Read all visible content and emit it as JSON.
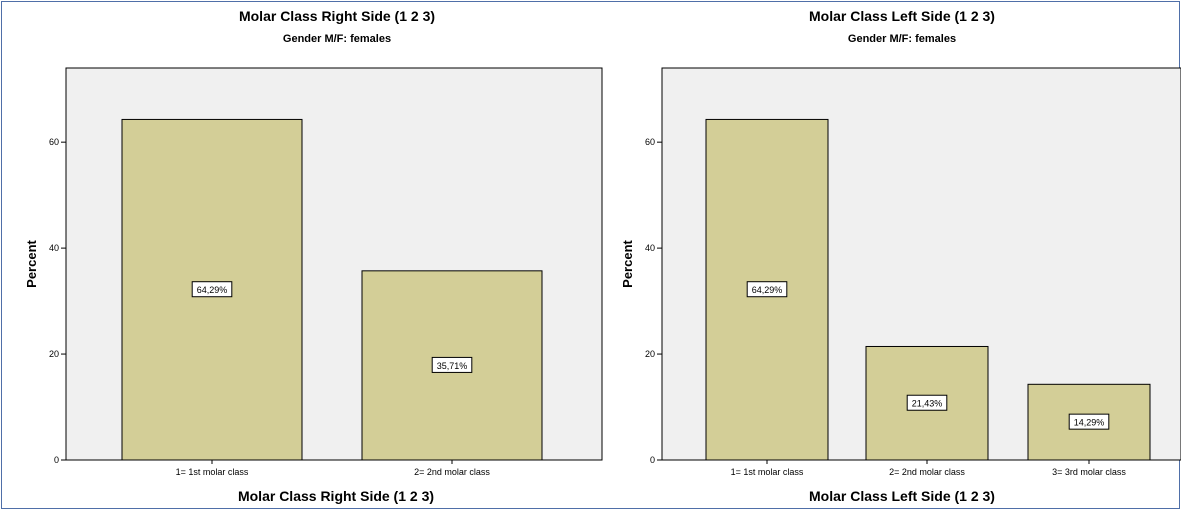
{
  "colors": {
    "plot_background": "#f0f0f0",
    "bar_fill": "#d3ce97",
    "bar_stroke": "#000000",
    "frame_border": "#4f6fa8"
  },
  "chart_data": [
    {
      "type": "bar",
      "title": "Molar Class Right Side (1 2 3)",
      "subtitle": "Gender M/F: females",
      "xlabel": "Molar Class Right Side (1 2 3)",
      "ylabel": "Percent",
      "categories": [
        "1= 1st molar class",
        "2= 2nd molar class"
      ],
      "values": [
        64.29,
        35.71
      ],
      "data_labels": [
        "64,29%",
        "35,71%"
      ],
      "ylim": [
        0,
        74
      ],
      "yticks": [
        0,
        20,
        40,
        60
      ],
      "grid": false
    },
    {
      "type": "bar",
      "title": "Molar Class Left Side (1 2 3)",
      "subtitle": "Gender M/F: females",
      "xlabel": "Molar Class Left Side (1 2 3)",
      "ylabel": "Percent",
      "categories": [
        "1= 1st molar class",
        "2= 2nd molar class",
        "3= 3rd molar class"
      ],
      "values": [
        64.29,
        21.43,
        14.29
      ],
      "data_labels": [
        "64,29%",
        "21,43%",
        "14,29%"
      ],
      "ylim": [
        0,
        74
      ],
      "yticks": [
        0,
        20,
        40,
        60
      ],
      "grid": false
    }
  ]
}
